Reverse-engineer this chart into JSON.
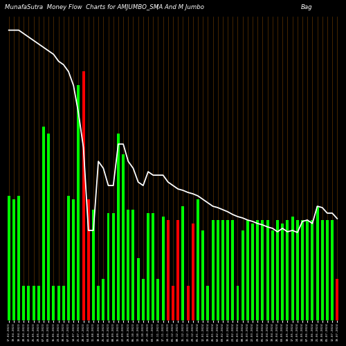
{
  "title": "MunafaSutra  Money Flow  Charts for AMJUMBO_SM",
  "subtitle": "(A And M Jumbo",
  "subtitle2": "Bag",
  "background_color": "#000000",
  "bar_color_green": "#00ff00",
  "bar_color_red": "#ff0000",
  "line_color": "#ffffff",
  "grid_color": "#5a3000",
  "text_color": "#ffffff",
  "dates": [
    "17-02-2023",
    "19-04-2023",
    "10-04-2023",
    "28-04-2023",
    "22-05-2023",
    "25-05-2023",
    "29-05-2023",
    "07-06-2023",
    "09-06-2023",
    "16-06-2023",
    "23-06-2023",
    "30-06-2023",
    "07-07-2023",
    "14-07-2023",
    "21-07-2023",
    "28-07-2023",
    "04-08-2023",
    "11-08-2023",
    "18-08-2023",
    "25-08-2023",
    "01-09-2023",
    "08-09-2023",
    "15-09-2023",
    "22-09-2023",
    "29-09-2023",
    "06-10-2023",
    "13-10-2023",
    "20-10-2023",
    "27-10-2023",
    "03-11-2023",
    "10-11-2023",
    "17-11-2023",
    "24-11-2023",
    "01-12-2023",
    "08-12-2023",
    "15-12-2023",
    "22-12-2023",
    "29-12-2023",
    "05-01-2024",
    "12-01-2024",
    "19-01-2024",
    "26-01-2024",
    "02-02-2024",
    "09-02-2024",
    "16-02-2024",
    "23-02-2024",
    "01-03-2024",
    "08-03-2024",
    "15-03-2024",
    "22-03-2024",
    "29-03-2024",
    "05-04-2024",
    "12-04-2024",
    "19-04-2024",
    "26-04-2024",
    "03-05-2024",
    "10-05-2024",
    "17-05-2024",
    "24-05-2024",
    "31-05-2024",
    "07-06-2024",
    "14-06-2024",
    "21-06-2024",
    "28-06-2024",
    "05-07-2024",
    "12-07-2024",
    "19-07-2024"
  ],
  "bar_heights": [
    180,
    175,
    180,
    50,
    50,
    50,
    50,
    280,
    270,
    50,
    50,
    50,
    180,
    175,
    340,
    360,
    175,
    160,
    50,
    60,
    155,
    155,
    270,
    240,
    160,
    160,
    90,
    60,
    155,
    155,
    60,
    150,
    145,
    50,
    145,
    165,
    50,
    140,
    175,
    130,
    50,
    145,
    145,
    145,
    145,
    145,
    50,
    130,
    145,
    140,
    145,
    145,
    145,
    130,
    145,
    140,
    145,
    150,
    145,
    145,
    145,
    145,
    165,
    145,
    145,
    145,
    60
  ],
  "bar_colors": [
    "g",
    "g",
    "g",
    "g",
    "g",
    "g",
    "g",
    "g",
    "g",
    "g",
    "g",
    "g",
    "g",
    "g",
    "g",
    "r",
    "r",
    "g",
    "g",
    "g",
    "g",
    "g",
    "g",
    "g",
    "g",
    "g",
    "g",
    "g",
    "g",
    "g",
    "g",
    "g",
    "r",
    "r",
    "r",
    "g",
    "r",
    "r",
    "g",
    "g",
    "g",
    "g",
    "g",
    "g",
    "g",
    "g",
    "g",
    "g",
    "g",
    "g",
    "g",
    "g",
    "g",
    "g",
    "g",
    "g",
    "g",
    "g",
    "g",
    "g",
    "g",
    "g",
    "g",
    "g",
    "g",
    "g",
    "r"
  ],
  "line_y": [
    420,
    420,
    420,
    415,
    410,
    405,
    400,
    395,
    390,
    385,
    375,
    370,
    360,
    340,
    300,
    250,
    130,
    130,
    230,
    220,
    195,
    195,
    255,
    255,
    230,
    220,
    200,
    195,
    215,
    210,
    210,
    210,
    200,
    195,
    190,
    188,
    185,
    183,
    180,
    175,
    170,
    165,
    163,
    160,
    157,
    153,
    150,
    148,
    145,
    143,
    140,
    138,
    135,
    133,
    128,
    133,
    128,
    130,
    127,
    143,
    145,
    140,
    165,
    163,
    155,
    155,
    147
  ],
  "ylim": [
    0,
    440
  ],
  "figsize": [
    5.0,
    5.0
  ],
  "dpi": 100
}
